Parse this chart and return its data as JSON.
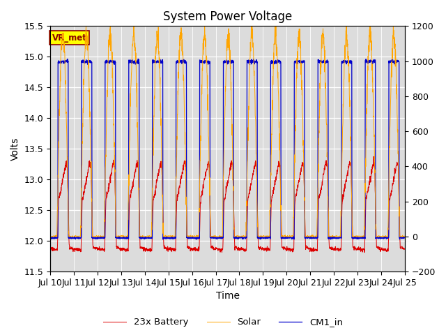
{
  "title": "System Power Voltage",
  "xlabel": "Time",
  "ylabel": "Volts",
  "ylim_left": [
    11.5,
    15.5
  ],
  "ylim_right": [
    -200,
    1200
  ],
  "yticks_left": [
    11.5,
    12.0,
    12.5,
    13.0,
    13.5,
    14.0,
    14.5,
    15.0,
    15.5
  ],
  "yticks_right": [
    -200,
    0,
    200,
    400,
    600,
    800,
    1000,
    1200
  ],
  "xtick_labels": [
    "Jul 10",
    "Jul 11",
    "Jul 12",
    "Jul 13",
    "Jul 14",
    "Jul 15",
    "Jul 16",
    "Jul 17",
    "Jul 18",
    "Jul 19",
    "Jul 20",
    "Jul 21",
    "Jul 22",
    "Jul 23",
    "Jul 24",
    "Jul 25"
  ],
  "n_days": 15,
  "colors": {
    "battery": "#dd0000",
    "solar": "#ffa500",
    "cm1": "#0000cc"
  },
  "legend_labels": [
    "23x Battery",
    "Solar",
    "CM1_in"
  ],
  "annotation_text": "VR_met",
  "annotation_box_color": "#ffff00",
  "annotation_text_color": "#8b0000",
  "bg_color": "#dcdcdc",
  "title_fontsize": 12,
  "label_fontsize": 10,
  "tick_fontsize": 9
}
